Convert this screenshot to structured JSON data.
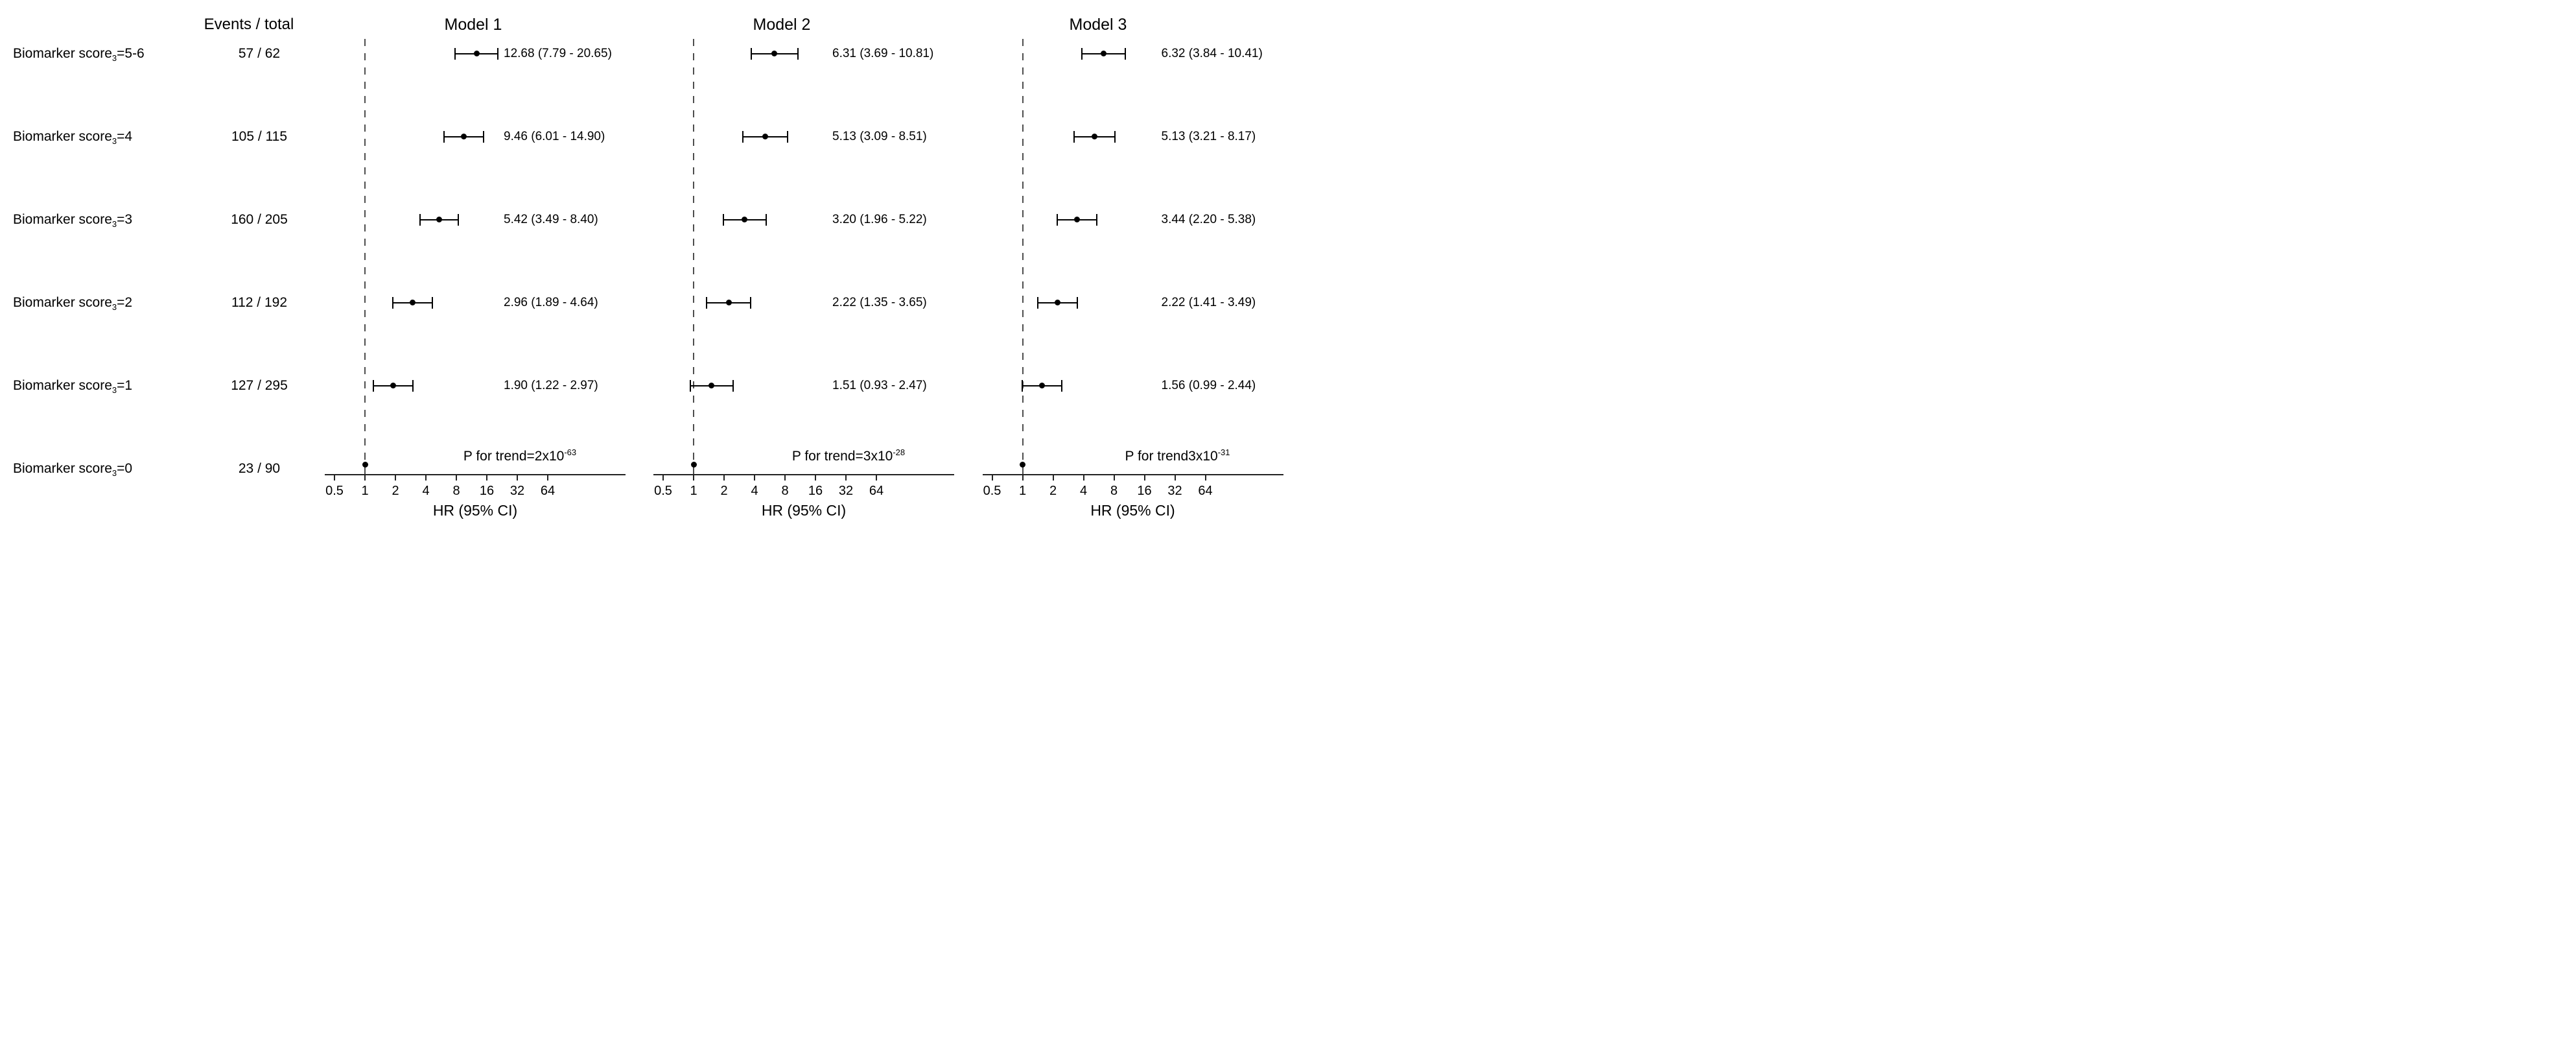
{
  "figure": {
    "events_header": "Events / total"
  },
  "chart_data": {
    "type": "forest",
    "xscale": "log2",
    "xlabel": "HR (95% CI)",
    "xticks": [
      0.5,
      1,
      2,
      4,
      8,
      16,
      32,
      64
    ],
    "xtick_labels": [
      "0.5",
      "1",
      "2",
      "4",
      "8",
      "16",
      "32",
      "64"
    ],
    "axis_range_approx": [
      0.4,
      360
    ],
    "reference_line_hr": 1,
    "grid": "off",
    "colors": {
      "marker": "#000000",
      "ci_line": "#000000",
      "axis": "#222222",
      "reference_dashed_line": "#4d4d4d",
      "text": "#000000",
      "background": "#ffffff"
    },
    "row_label_base": "Biomarker score",
    "row_label_subscript": "3",
    "rows": [
      {
        "level": "=5-6",
        "events": "57 / 62"
      },
      {
        "level": "=4",
        "events": "105 / 115"
      },
      {
        "level": "=3",
        "events": "160 / 205"
      },
      {
        "level": "=2",
        "events": "112 / 192"
      },
      {
        "level": "=1",
        "events": "127 / 295"
      },
      {
        "level": "=0",
        "events": "23 / 90"
      }
    ],
    "models": [
      {
        "name": "Model 1",
        "p_trend_label": "P for trend=2x10",
        "p_trend_exponent": "-63",
        "estimates": [
          {
            "hr": 12.68,
            "lo": 7.79,
            "hi": 20.65,
            "text": "12.68 (7.79 - 20.65)"
          },
          {
            "hr": 9.46,
            "lo": 6.01,
            "hi": 14.9,
            "text": "9.46 (6.01 - 14.90)"
          },
          {
            "hr": 5.42,
            "lo": 3.49,
            "hi": 8.4,
            "text": "5.42 (3.49 - 8.40)"
          },
          {
            "hr": 2.96,
            "lo": 1.89,
            "hi": 4.64,
            "text": "2.96 (1.89 - 4.64)"
          },
          {
            "hr": 1.9,
            "lo": 1.22,
            "hi": 2.97,
            "text": "1.90 (1.22 - 2.97)"
          },
          {
            "hr": 1.0,
            "reference": true,
            "text": ""
          }
        ]
      },
      {
        "name": "Model 2",
        "p_trend_label": "P for trend=3x10",
        "p_trend_exponent": "-28",
        "estimates": [
          {
            "hr": 6.31,
            "lo": 3.69,
            "hi": 10.81,
            "text": "6.31 (3.69 - 10.81)"
          },
          {
            "hr": 5.13,
            "lo": 3.09,
            "hi": 8.51,
            "text": "5.13 (3.09 - 8.51)"
          },
          {
            "hr": 3.2,
            "lo": 1.96,
            "hi": 5.22,
            "text": "3.20 (1.96 - 5.22)"
          },
          {
            "hr": 2.22,
            "lo": 1.35,
            "hi": 3.65,
            "text": "2.22 (1.35 - 3.65)"
          },
          {
            "hr": 1.51,
            "lo": 0.93,
            "hi": 2.47,
            "text": "1.51 (0.93 - 2.47)"
          },
          {
            "hr": 1.0,
            "reference": true,
            "text": ""
          }
        ]
      },
      {
        "name": "Model 3",
        "p_trend_label": "P for trend3x10",
        "p_trend_exponent": "-31",
        "estimates": [
          {
            "hr": 6.32,
            "lo": 3.84,
            "hi": 10.41,
            "text": "6.32 (3.84 - 10.41)"
          },
          {
            "hr": 5.13,
            "lo": 3.21,
            "hi": 8.17,
            "text": "5.13 (3.21 - 8.17)"
          },
          {
            "hr": 3.44,
            "lo": 2.2,
            "hi": 5.38,
            "text": "3.44 (2.20 - 5.38)"
          },
          {
            "hr": 2.22,
            "lo": 1.41,
            "hi": 3.49,
            "text": "2.22 (1.41 - 3.49)"
          },
          {
            "hr": 1.56,
            "lo": 0.99,
            "hi": 2.44,
            "text": "1.56 (0.99 - 2.44)"
          },
          {
            "hr": 1.0,
            "reference": true,
            "text": ""
          }
        ]
      }
    ]
  }
}
